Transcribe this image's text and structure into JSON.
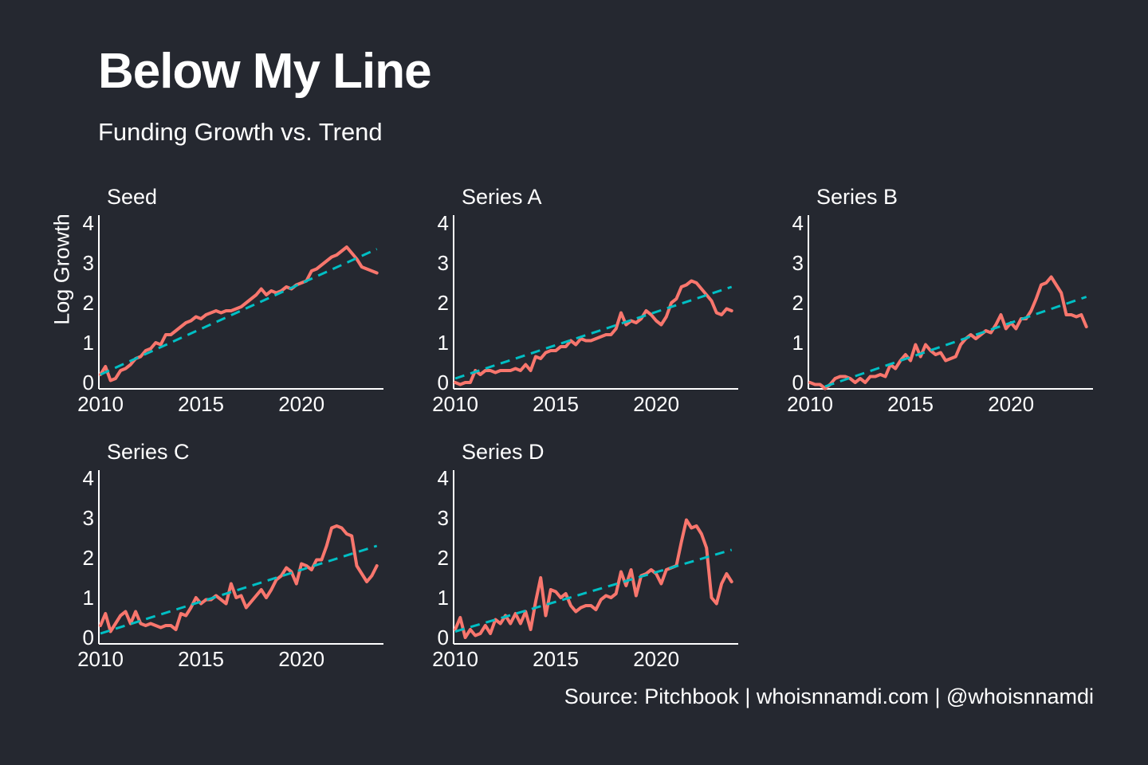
{
  "title": "Below My Line",
  "subtitle": "Funding Growth vs. Trend",
  "source": "Source: Pitchbook | whoisnnamdi.com | @whoisnnamdi",
  "colors": {
    "background": "#252830",
    "actual": "#f8766d",
    "trend": "#00bfc4",
    "axis": "#ffffff"
  },
  "chart_data": {
    "type": "line",
    "layout": "small-multiples",
    "ylabel": "Log Growth",
    "xlim": [
      2010,
      2024
    ],
    "ylim": [
      0,
      4
    ],
    "x_ticks": [
      2010,
      2015,
      2020
    ],
    "y_ticks": [
      0,
      1,
      2,
      3,
      4
    ],
    "grid": false,
    "line_styles": {
      "actual": "solid",
      "trend": "dashed"
    },
    "panels": [
      {
        "name": "Seed",
        "x": [
          2010,
          2010.25,
          2010.5,
          2010.75,
          2011,
          2011.25,
          2011.5,
          2011.75,
          2012,
          2012.25,
          2012.5,
          2012.75,
          2013,
          2013.25,
          2013.5,
          2013.75,
          2014,
          2014.25,
          2014.5,
          2014.75,
          2015,
          2015.25,
          2015.5,
          2015.75,
          2016,
          2016.25,
          2016.5,
          2016.75,
          2017,
          2017.25,
          2017.5,
          2017.75,
          2018,
          2018.25,
          2018.5,
          2018.75,
          2019,
          2019.25,
          2019.5,
          2019.75,
          2020,
          2020.25,
          2020.5,
          2020.75,
          2021,
          2021.25,
          2021.5,
          2021.75,
          2022,
          2022.25,
          2022.5,
          2022.75,
          2023,
          2023.25,
          2023.5,
          2023.75
        ],
        "values": [
          0.2,
          0.4,
          0.05,
          0.1,
          0.3,
          0.35,
          0.45,
          0.6,
          0.65,
          0.8,
          0.85,
          1.0,
          0.95,
          1.2,
          1.2,
          1.3,
          1.4,
          1.5,
          1.55,
          1.65,
          1.6,
          1.7,
          1.75,
          1.8,
          1.75,
          1.8,
          1.8,
          1.85,
          1.9,
          2.0,
          2.1,
          2.2,
          2.35,
          2.2,
          2.3,
          2.25,
          2.3,
          2.4,
          2.35,
          2.45,
          2.5,
          2.55,
          2.8,
          2.85,
          2.95,
          3.05,
          3.15,
          3.2,
          3.3,
          3.4,
          3.25,
          3.1,
          2.9,
          2.85,
          2.8,
          2.75
        ],
        "trend": {
          "start": [
            2010,
            0.2
          ],
          "end": [
            2023.75,
            3.35
          ]
        }
      },
      {
        "name": "Series A",
        "x": [
          2010,
          2010.25,
          2010.5,
          2010.75,
          2011,
          2011.25,
          2011.5,
          2011.75,
          2012,
          2012.25,
          2012.5,
          2012.75,
          2013,
          2013.25,
          2013.5,
          2013.75,
          2014,
          2014.25,
          2014.5,
          2014.75,
          2015,
          2015.25,
          2015.5,
          2015.75,
          2016,
          2016.25,
          2016.5,
          2016.75,
          2017,
          2017.25,
          2017.5,
          2017.75,
          2018,
          2018.25,
          2018.5,
          2018.75,
          2019,
          2019.25,
          2019.5,
          2019.75,
          2020,
          2020.25,
          2020.5,
          2020.75,
          2021,
          2021.25,
          2021.5,
          2021.75,
          2022,
          2022.25,
          2022.5,
          2022.75,
          2023,
          2023.25,
          2023.5,
          2023.75
        ],
        "values": [
          0.0,
          -0.05,
          0.0,
          0.0,
          0.3,
          0.2,
          0.3,
          0.3,
          0.25,
          0.3,
          0.3,
          0.3,
          0.35,
          0.3,
          0.45,
          0.3,
          0.65,
          0.6,
          0.75,
          0.8,
          0.8,
          0.9,
          0.9,
          1.05,
          0.95,
          1.1,
          1.05,
          1.05,
          1.1,
          1.15,
          1.2,
          1.2,
          1.35,
          1.75,
          1.45,
          1.55,
          1.5,
          1.6,
          1.8,
          1.7,
          1.55,
          1.45,
          1.65,
          2.0,
          2.1,
          2.4,
          2.45,
          2.55,
          2.5,
          2.35,
          2.2,
          2.05,
          1.75,
          1.7,
          1.85,
          1.8
        ],
        "trend": {
          "start": [
            2010,
            0.1
          ],
          "end": [
            2023.75,
            2.4
          ]
        }
      },
      {
        "name": "Series B",
        "x": [
          2010,
          2010.25,
          2010.5,
          2010.75,
          2011,
          2011.25,
          2011.5,
          2011.75,
          2012,
          2012.25,
          2012.5,
          2012.75,
          2013,
          2013.25,
          2013.5,
          2013.75,
          2014,
          2014.25,
          2014.5,
          2014.75,
          2015,
          2015.25,
          2015.5,
          2015.75,
          2016,
          2016.25,
          2016.5,
          2016.75,
          2017,
          2017.25,
          2017.5,
          2017.75,
          2018,
          2018.25,
          2018.5,
          2018.75,
          2019,
          2019.25,
          2019.5,
          2019.75,
          2020,
          2020.25,
          2020.5,
          2020.75,
          2021,
          2021.25,
          2021.5,
          2021.75,
          2022,
          2022.25,
          2022.5,
          2022.75,
          2023,
          2023.25,
          2023.5,
          2023.75
        ],
        "values": [
          0.0,
          -0.05,
          -0.05,
          -0.15,
          -0.05,
          0.1,
          0.15,
          0.15,
          0.1,
          0.0,
          0.1,
          0.0,
          0.15,
          0.15,
          0.2,
          0.15,
          0.45,
          0.35,
          0.55,
          0.7,
          0.55,
          0.95,
          0.65,
          0.95,
          0.8,
          0.7,
          0.75,
          0.55,
          0.6,
          0.65,
          0.95,
          1.1,
          1.2,
          1.1,
          1.2,
          1.3,
          1.25,
          1.45,
          1.7,
          1.35,
          1.5,
          1.35,
          1.6,
          1.6,
          1.8,
          2.1,
          2.45,
          2.5,
          2.65,
          2.45,
          2.25,
          1.7,
          1.7,
          1.65,
          1.7,
          1.4
        ],
        "trend": {
          "start": [
            2010.75,
            -0.1
          ],
          "end": [
            2023.75,
            2.15
          ]
        }
      },
      {
        "name": "Series C",
        "x": [
          2010,
          2010.25,
          2010.5,
          2010.75,
          2011,
          2011.25,
          2011.5,
          2011.75,
          2012,
          2012.25,
          2012.5,
          2012.75,
          2013,
          2013.25,
          2013.5,
          2013.75,
          2014,
          2014.25,
          2014.5,
          2014.75,
          2015,
          2015.25,
          2015.5,
          2015.75,
          2016,
          2016.25,
          2016.5,
          2016.75,
          2017,
          2017.25,
          2017.5,
          2017.75,
          2018,
          2018.25,
          2018.5,
          2018.75,
          2019,
          2019.25,
          2019.5,
          2019.75,
          2020,
          2020.25,
          2020.5,
          2020.75,
          2021,
          2021.25,
          2021.5,
          2021.75,
          2022,
          2022.25,
          2022.5,
          2022.75,
          2023,
          2023.25,
          2023.5,
          2023.75
        ],
        "values": [
          0.3,
          0.6,
          0.15,
          0.35,
          0.55,
          0.65,
          0.35,
          0.65,
          0.35,
          0.3,
          0.35,
          0.3,
          0.25,
          0.3,
          0.3,
          0.2,
          0.6,
          0.55,
          0.75,
          1.0,
          0.85,
          0.95,
          0.95,
          1.05,
          0.95,
          0.85,
          1.35,
          1.0,
          1.05,
          0.75,
          0.9,
          1.05,
          1.2,
          1.0,
          1.2,
          1.45,
          1.55,
          1.75,
          1.65,
          1.35,
          1.85,
          1.8,
          1.7,
          1.95,
          1.95,
          2.3,
          2.75,
          2.8,
          2.75,
          2.6,
          2.55,
          1.8,
          1.6,
          1.4,
          1.55,
          1.8
        ],
        "trend": {
          "start": [
            2010,
            0.1
          ],
          "end": [
            2023.75,
            2.3
          ]
        }
      },
      {
        "name": "Series D",
        "x": [
          2010,
          2010.25,
          2010.5,
          2010.75,
          2011,
          2011.25,
          2011.5,
          2011.75,
          2012,
          2012.25,
          2012.5,
          2012.75,
          2013,
          2013.25,
          2013.5,
          2013.75,
          2014,
          2014.25,
          2014.5,
          2014.75,
          2015,
          2015.25,
          2015.5,
          2015.75,
          2016,
          2016.25,
          2016.5,
          2016.75,
          2017,
          2017.25,
          2017.5,
          2017.75,
          2018,
          2018.25,
          2018.5,
          2018.75,
          2019,
          2019.25,
          2019.5,
          2019.75,
          2020,
          2020.25,
          2020.5,
          2020.75,
          2021,
          2021.25,
          2021.5,
          2021.75,
          2022,
          2022.25,
          2022.5,
          2022.75,
          2023,
          2023.25,
          2023.5,
          2023.75
        ],
        "values": [
          0.2,
          0.5,
          0.0,
          0.2,
          0.05,
          0.1,
          0.3,
          0.1,
          0.45,
          0.35,
          0.55,
          0.35,
          0.6,
          0.35,
          0.65,
          0.2,
          0.9,
          1.5,
          0.55,
          1.2,
          1.15,
          1.0,
          1.1,
          0.8,
          0.65,
          0.75,
          0.8,
          0.8,
          0.7,
          0.95,
          1.05,
          1.0,
          1.1,
          1.65,
          1.3,
          1.7,
          1.05,
          1.55,
          1.6,
          1.7,
          1.6,
          1.35,
          1.7,
          1.75,
          1.8,
          2.4,
          2.95,
          2.75,
          2.8,
          2.6,
          2.25,
          1.0,
          0.85,
          1.35,
          1.6,
          1.4
        ],
        "trend": {
          "start": [
            2010,
            0.15
          ],
          "end": [
            2023.75,
            2.2
          ]
        }
      }
    ]
  }
}
